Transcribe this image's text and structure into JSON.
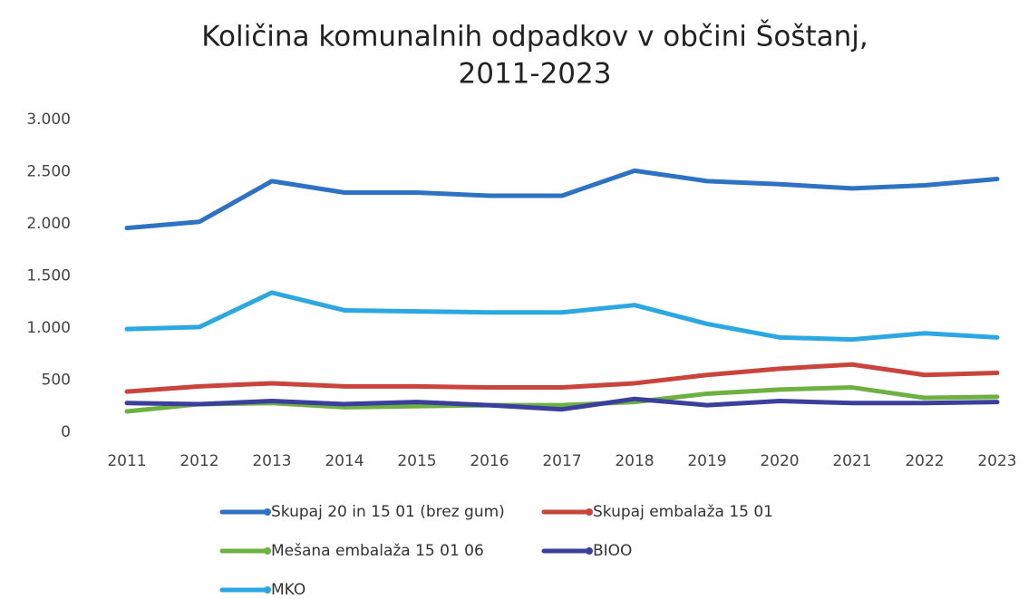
{
  "chart_data": {
    "type": "line",
    "title": [
      "Količina komunalnih odpadkov v občini Šoštanj,",
      "2011-2023"
    ],
    "categories": [
      "2011",
      "2012",
      "2013",
      "2014",
      "2015",
      "2016",
      "2017",
      "2018",
      "2019",
      "2020",
      "2021",
      "2022",
      "2023"
    ],
    "series": [
      {
        "name": "Skupaj 20 in 15 01 (brez gum)",
        "color": "#2e72c4",
        "values": [
          1960,
          2020,
          2410,
          2300,
          2300,
          2270,
          2270,
          2510,
          2410,
          2380,
          2340,
          2370,
          2430
        ]
      },
      {
        "name": "Skupaj embalaža 15 01",
        "color": "#c9443c",
        "values": [
          390,
          440,
          470,
          440,
          440,
          430,
          430,
          470,
          550,
          610,
          650,
          550,
          570
        ]
      },
      {
        "name": "Mešana embalaža 15 01 06",
        "color": "#6fb043",
        "values": [
          200,
          270,
          280,
          240,
          250,
          260,
          260,
          290,
          370,
          410,
          430,
          330,
          340
        ]
      },
      {
        "name": "BIOO",
        "color": "#3b3f9c",
        "values": [
          280,
          270,
          300,
          270,
          290,
          260,
          220,
          320,
          260,
          300,
          280,
          280,
          290
        ]
      },
      {
        "name": "MKO",
        "color": "#2ba8e2",
        "values": [
          990,
          1010,
          1340,
          1170,
          1160,
          1150,
          1150,
          1220,
          1040,
          910,
          890,
          950,
          910
        ]
      }
    ],
    "ylim": [
      0,
      3000
    ],
    "yticks": [
      0,
      500,
      {
        "value": 1000,
        "label": "1.000"
      },
      {
        "value": 1500,
        "label": "1.500"
      },
      {
        "value": 2000,
        "label": "2.000"
      },
      {
        "value": 2500,
        "label": "2.500"
      },
      {
        "value": 3000,
        "label": "3.000"
      }
    ],
    "grid": false
  }
}
